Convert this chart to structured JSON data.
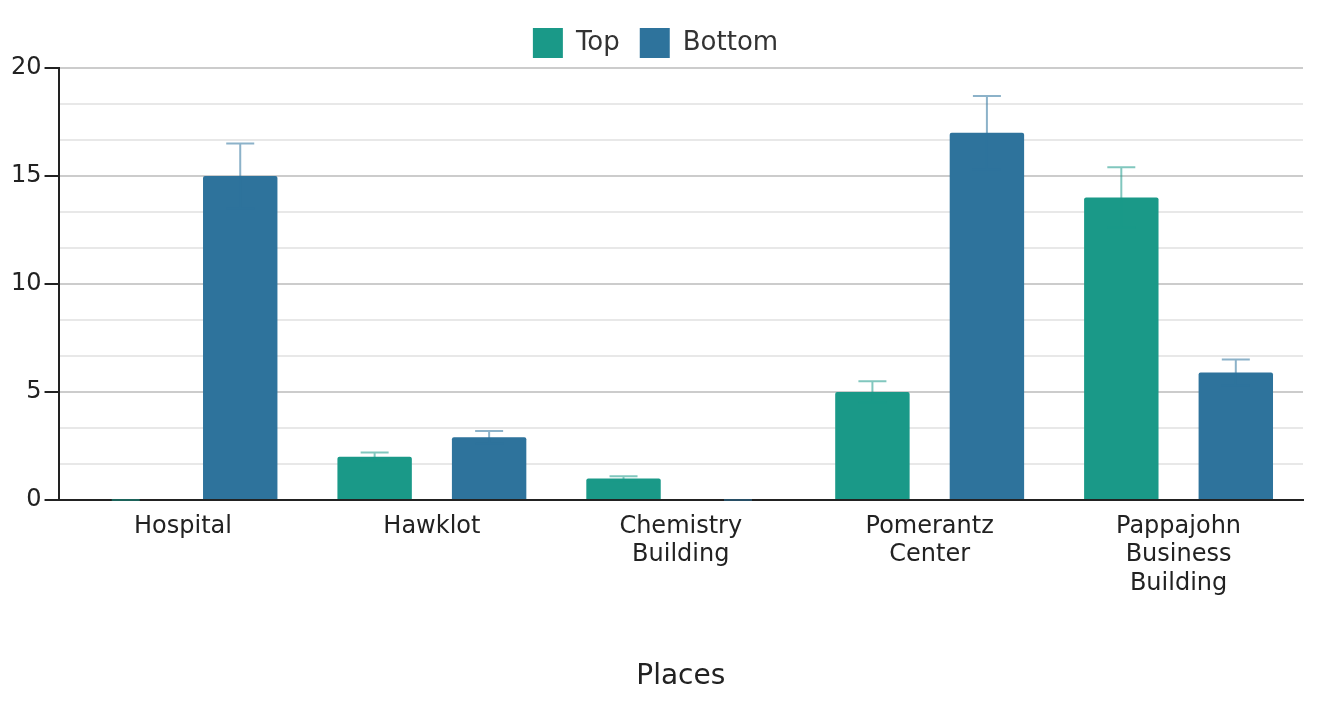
{
  "chart_data": {
    "type": "bar",
    "xlabel": "Places",
    "categories": [
      "Hospital",
      "Hawklot",
      "Chemistry Building",
      "Pomerantz Center",
      "Pappajohn Business Building"
    ],
    "series": [
      {
        "name": "Top",
        "color": "#1a9988",
        "values": [
          0,
          2,
          1,
          5,
          14
        ],
        "errors": [
          0,
          0.2,
          0.1,
          0.5,
          1.4
        ]
      },
      {
        "name": "Bottom",
        "color": "#2e739c",
        "values": [
          15,
          2.9,
          0,
          17,
          5.9
        ],
        "errors": [
          1.5,
          0.3,
          0,
          1.7,
          0.6
        ]
      }
    ],
    "ylim": [
      0,
      20
    ],
    "yticks": [
      0,
      {
        "value": 1.667,
        "label": null
      },
      {
        "value": 3.333,
        "label": null
      },
      5,
      {
        "value": 6.667,
        "label": null
      },
      {
        "value": 8.333,
        "label": null
      },
      10,
      {
        "value": 11.667,
        "label": null
      },
      {
        "value": 13.333,
        "label": null
      },
      15,
      {
        "value": 16.667,
        "label": null
      },
      {
        "value": 18.333,
        "label": null
      },
      20
    ],
    "grid": "y",
    "legend": "top"
  }
}
